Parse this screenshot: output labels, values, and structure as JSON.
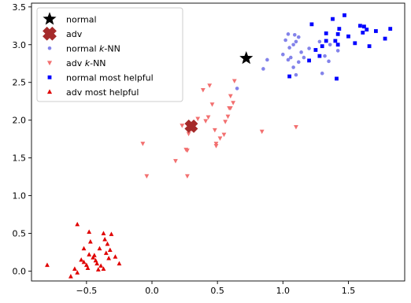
{
  "chart_data": {
    "type": "scatter",
    "xlim": [
      -0.92,
      1.93
    ],
    "ylim": [
      -0.13,
      3.55
    ],
    "x_ticks": [
      -0.5,
      0.0,
      0.5,
      1.0,
      1.5
    ],
    "x_tick_labels": [
      "−0.5",
      "0.0",
      "0.5",
      "1.0",
      "1.5"
    ],
    "y_ticks": [
      0.0,
      0.5,
      1.0,
      1.5,
      2.0,
      2.5,
      3.0,
      3.5
    ],
    "y_tick_labels": [
      "0.0",
      "0.5",
      "1.0",
      "1.5",
      "2.0",
      "2.5",
      "3.0",
      "3.5"
    ],
    "grid": false,
    "legend_position": "top-left",
    "series": [
      {
        "key": "normal",
        "name": "normal",
        "marker": "star",
        "color": "#000000",
        "points": [
          [
            0.72,
            2.82
          ]
        ]
      },
      {
        "key": "adv",
        "name": "adv",
        "marker": "x-filled",
        "color": "#a52a2a",
        "points": [
          [
            0.3,
            1.92
          ]
        ]
      },
      {
        "key": "normal_knn",
        "name": "normal k-NN",
        "name_parts": [
          "normal ",
          "k",
          "-NN"
        ],
        "marker": "circle",
        "color": "#6d6de6",
        "points": [
          [
            0.65,
            2.42
          ],
          [
            0.88,
            2.8
          ],
          [
            1.0,
            2.87
          ],
          [
            1.02,
            3.06
          ],
          [
            1.04,
            3.14
          ],
          [
            1.08,
            3.0
          ],
          [
            1.1,
            3.04
          ],
          [
            1.12,
            3.1
          ],
          [
            1.04,
            2.8
          ],
          [
            1.06,
            2.83
          ],
          [
            1.08,
            2.7
          ],
          [
            1.1,
            2.6
          ],
          [
            1.12,
            2.77
          ],
          [
            1.14,
            2.9
          ],
          [
            1.16,
            2.83
          ],
          [
            1.2,
            2.95
          ],
          [
            1.28,
            3.04
          ],
          [
            1.32,
            2.85
          ],
          [
            1.36,
            3.0
          ],
          [
            1.42,
            2.92
          ],
          [
            1.3,
            2.62
          ],
          [
            1.35,
            2.78
          ],
          [
            1.09,
            3.13
          ],
          [
            0.85,
            2.68
          ],
          [
            1.05,
            2.96
          ]
        ]
      },
      {
        "key": "adv_knn",
        "name": "adv k-NN",
        "name_parts": [
          "adv ",
          "k",
          "-NN"
        ],
        "marker": "triangle-down",
        "color": "#f27070",
        "points": [
          [
            -0.07,
            1.69
          ],
          [
            -0.04,
            1.26
          ],
          [
            0.18,
            1.46
          ],
          [
            0.23,
            1.93
          ],
          [
            0.26,
            1.61
          ],
          [
            0.27,
            1.6
          ],
          [
            0.27,
            1.26
          ],
          [
            0.28,
            1.82
          ],
          [
            0.3,
            1.88
          ],
          [
            0.32,
            1.94
          ],
          [
            0.35,
            2.02
          ],
          [
            0.39,
            2.4
          ],
          [
            0.41,
            1.99
          ],
          [
            0.43,
            2.04
          ],
          [
            0.44,
            2.46
          ],
          [
            0.46,
            2.21
          ],
          [
            0.48,
            1.87
          ],
          [
            0.49,
            1.66
          ],
          [
            0.49,
            1.69
          ],
          [
            0.52,
            1.76
          ],
          [
            0.55,
            1.81
          ],
          [
            0.56,
            1.98
          ],
          [
            0.58,
            2.05
          ],
          [
            0.59,
            2.16
          ],
          [
            0.6,
            2.32
          ],
          [
            0.62,
            2.23
          ],
          [
            0.63,
            2.52
          ],
          [
            0.6,
            2.16
          ],
          [
            0.84,
            1.85
          ],
          [
            1.1,
            1.91
          ]
        ]
      },
      {
        "key": "normal_most_helpful",
        "name": "normal most helpful",
        "marker": "square",
        "color": "#0000ff",
        "points": [
          [
            1.05,
            2.58
          ],
          [
            1.22,
            3.27
          ],
          [
            1.25,
            2.93
          ],
          [
            1.28,
            2.85
          ],
          [
            1.33,
            3.15
          ],
          [
            1.38,
            3.34
          ],
          [
            1.4,
            3.05
          ],
          [
            1.42,
            3.14
          ],
          [
            1.42,
            3.0
          ],
          [
            1.43,
            3.21
          ],
          [
            1.47,
            3.39
          ],
          [
            1.5,
            3.11
          ],
          [
            1.55,
            3.02
          ],
          [
            1.59,
            3.25
          ],
          [
            1.61,
            3.16
          ],
          [
            1.62,
            3.24
          ],
          [
            1.64,
            3.2
          ],
          [
            1.66,
            2.98
          ],
          [
            1.71,
            3.18
          ],
          [
            1.78,
            3.08
          ],
          [
            1.82,
            3.21
          ],
          [
            1.2,
            2.79
          ],
          [
            1.41,
            2.55
          ],
          [
            1.33,
            3.05
          ],
          [
            1.3,
            2.98
          ]
        ]
      },
      {
        "key": "adv_most_helpful",
        "name": "adv most helpful",
        "marker": "triangle-up",
        "color": "#e00000",
        "points": [
          [
            -0.8,
            0.08
          ],
          [
            -0.62,
            -0.07
          ],
          [
            -0.59,
            0.03
          ],
          [
            -0.57,
            -0.02
          ],
          [
            -0.54,
            0.15
          ],
          [
            -0.52,
            0.12
          ],
          [
            -0.5,
            0.08
          ],
          [
            -0.49,
            0.04
          ],
          [
            -0.48,
            0.22
          ],
          [
            -0.47,
            0.39
          ],
          [
            -0.48,
            0.52
          ],
          [
            -0.45,
            0.18
          ],
          [
            -0.43,
            0.14
          ],
          [
            -0.42,
            0.1
          ],
          [
            -0.4,
            0.3
          ],
          [
            -0.39,
            0.07
          ],
          [
            -0.37,
            0.03
          ],
          [
            -0.37,
            0.5
          ],
          [
            -0.35,
            0.24
          ],
          [
            -0.34,
            0.36
          ],
          [
            -0.33,
            0.17
          ],
          [
            -0.32,
            0.28
          ],
          [
            -0.31,
            0.49
          ],
          [
            -0.28,
            0.19
          ],
          [
            -0.25,
            0.1
          ],
          [
            -0.57,
            0.62
          ],
          [
            -0.44,
            0.21
          ],
          [
            -0.36,
            0.42
          ],
          [
            -0.52,
            0.3
          ],
          [
            -0.41,
            0.02
          ]
        ]
      }
    ]
  }
}
